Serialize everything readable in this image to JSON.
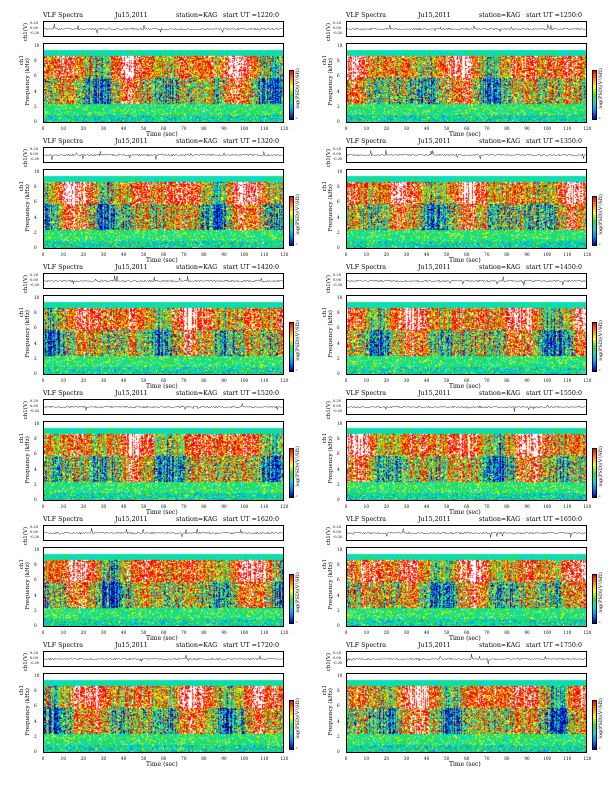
{
  "chart_data": {
    "type": "heatmap",
    "common": {
      "title_left": "VLF Spectra",
      "station": "station=KAG",
      "start_prefix": "start  UT  =",
      "ts_ylabel": "ch1(V)",
      "ts_yticks": [
        "0.20",
        "0.00",
        "-0.20"
      ],
      "spec_ylabel": "Frequency  (kHz)",
      "spec_ylabel_prefix": "ch1",
      "spec_yticks": [
        "10",
        "8",
        "6",
        "4",
        "2",
        "0"
      ],
      "spec_ylim": [
        0,
        10
      ],
      "xlabel": "Time  (sec)",
      "xticks": [
        "0",
        "10",
        "20",
        "30",
        "40",
        "50",
        "60",
        "70",
        "80",
        "90",
        "100",
        "110",
        "120"
      ],
      "xlim": [
        0,
        120
      ],
      "colorbar_label": "log(PSD)(V²/Hz)",
      "colorbar_ticks": [
        "1",
        "-1"
      ],
      "colormap": [
        "#0000aa",
        "#0088ff",
        "#00dddd",
        "#33dd33",
        "#ffff00",
        "#ff8800",
        "#ff0000",
        "#ffffff"
      ]
    },
    "panels": [
      {
        "date": "Ju15,2011",
        "start_time": "1220:0"
      },
      {
        "date": "Ju15,2011",
        "start_time": "1250:0"
      },
      {
        "date": "Ju15,2011",
        "start_time": "1320:0"
      },
      {
        "date": "Ju15,2011",
        "start_time": "1350:0"
      },
      {
        "date": "Ju15,2011",
        "start_time": "1420:0"
      },
      {
        "date": "Ju15,2011",
        "start_time": "1450:0"
      },
      {
        "date": "Ju15,2011",
        "start_time": "1520:0"
      },
      {
        "date": "Ju15,2011",
        "start_time": "1550:0"
      },
      {
        "date": "Ju15,2011",
        "start_time": "1620:0"
      },
      {
        "date": "Ju15,2011",
        "start_time": "1650:0"
      },
      {
        "date": "Ju15,2011",
        "start_time": "1720:0"
      },
      {
        "date": "Ju15,2011",
        "start_time": "1750:0"
      }
    ]
  }
}
